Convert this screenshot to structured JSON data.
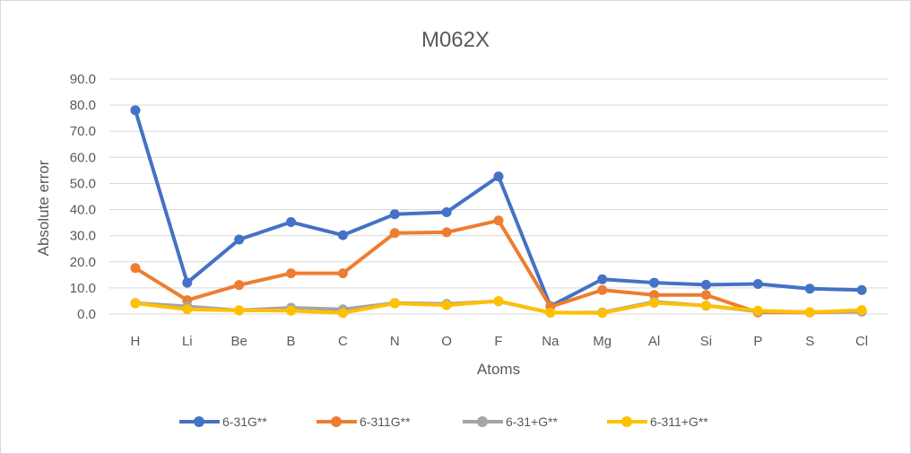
{
  "chart_data": {
    "type": "line",
    "title": "M062X",
    "xlabel": "Atoms",
    "ylabel": "Absolute error",
    "ylim": [
      0,
      90
    ],
    "yticks": [
      "0.0",
      "10.0",
      "20.0",
      "30.0",
      "40.0",
      "50.0",
      "60.0",
      "70.0",
      "80.0",
      "90.0"
    ],
    "grid": true,
    "legend_position": "bottom",
    "categories": [
      "H",
      "Li",
      "Be",
      "B",
      "C",
      "N",
      "O",
      "F",
      "Na",
      "Mg",
      "Al",
      "Si",
      "P",
      "S",
      "Cl"
    ],
    "series": [
      {
        "name": "6-31G**",
        "color": "#4472C4",
        "values": [
          78.0,
          12.0,
          28.5,
          35.2,
          30.2,
          38.2,
          39.0,
          52.7,
          3.0,
          13.3,
          12.0,
          11.2,
          11.5,
          9.7,
          9.2
        ]
      },
      {
        "name": "6-311G**",
        "color": "#ED7D31",
        "values": [
          17.6,
          5.3,
          11.1,
          15.6,
          15.6,
          31.0,
          31.3,
          35.8,
          2.8,
          9.2,
          7.3,
          7.3,
          0.6,
          0.6,
          0.9
        ]
      },
      {
        "name": "6-31+G**",
        "color": "#A5A5A5",
        "values": [
          4.2,
          2.9,
          1.4,
          2.4,
          1.8,
          4.2,
          3.9,
          4.9,
          0.5,
          0.6,
          4.7,
          3.2,
          1.0,
          0.7,
          1.0
        ]
      },
      {
        "name": "6-311+G**",
        "color": "#FFC000",
        "values": [
          4.1,
          1.8,
          1.4,
          1.3,
          0.4,
          4.1,
          3.4,
          5.0,
          0.5,
          0.4,
          4.3,
          3.2,
          1.3,
          0.7,
          1.5
        ]
      }
    ]
  }
}
